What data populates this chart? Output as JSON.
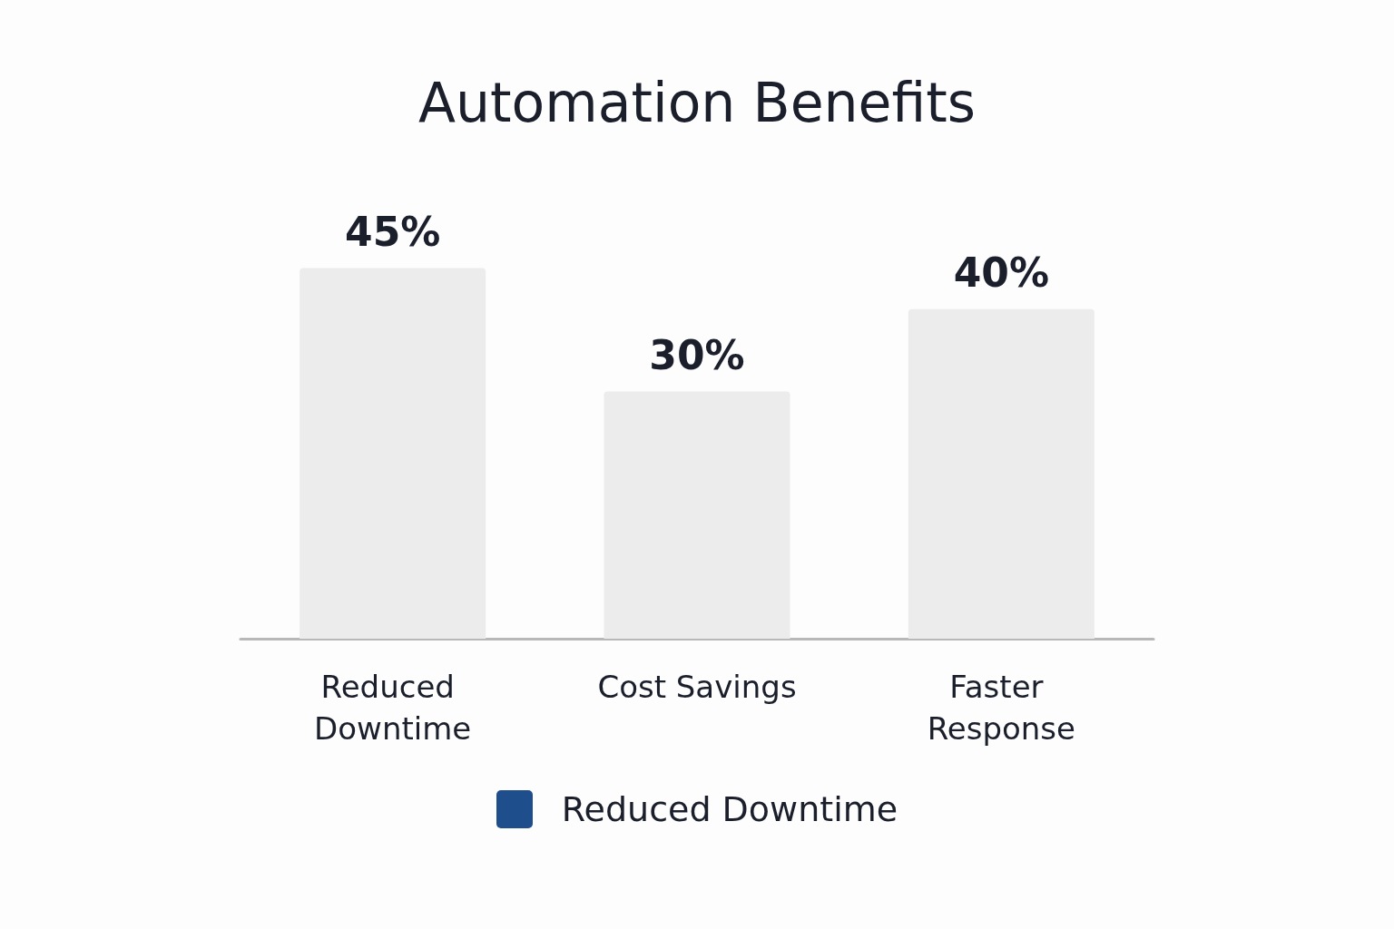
{
  "chart_data": {
    "type": "bar",
    "title": "Automation Benefits",
    "categories": [
      "Reduced Downtime",
      "Cost Savings",
      "Faster Response"
    ],
    "series": [
      {
        "name": "Reduced Downtime",
        "color": "#1f4e8c",
        "colors": [
          "#ececec",
          "#ececec",
          "#ececec"
        ],
        "values": [
          45,
          30,
          40
        ],
        "value_labels": [
          "45%",
          "30%",
          "40%"
        ]
      }
    ],
    "legend": "bottom"
  }
}
